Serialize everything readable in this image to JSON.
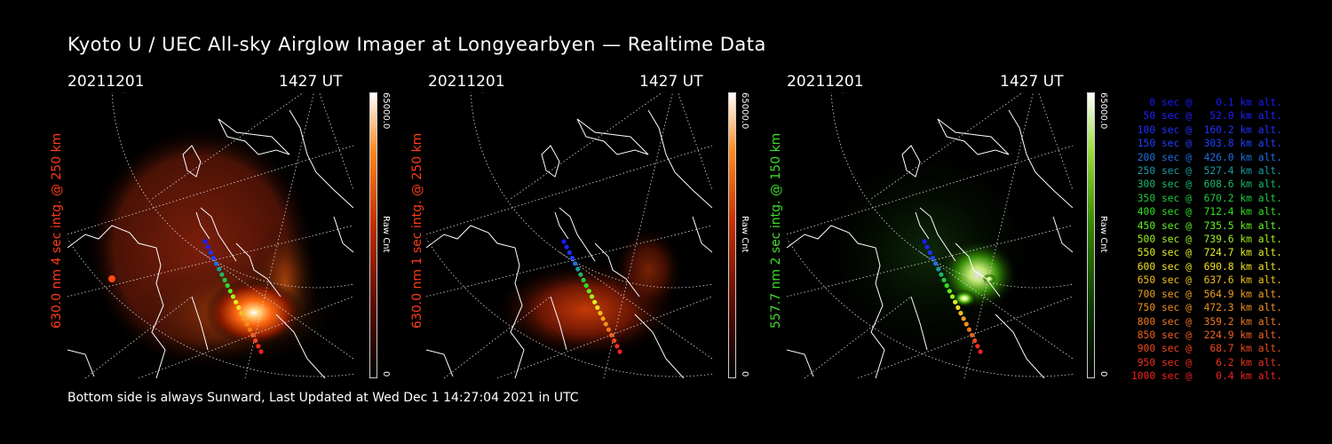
{
  "title": "Kyoto U / UEC All-sky Airglow Imager at Longyearbyen — Realtime Data",
  "footer": "Bottom side is always Sunward, Last Updated at Wed Dec  1 14:27:04 2021 in UTC",
  "panels": [
    {
      "date": "20211201",
      "time": "1427 UT",
      "label": "630.0 nm 4 sec intg. @ 250 km",
      "label_color": "#ff3b1a",
      "cbar_max": "65000.0",
      "cbar_unit": "Raw Cnt",
      "cbar_min": "0",
      "colormap": "red"
    },
    {
      "date": "20211201",
      "time": "1427 UT",
      "label": "630.0 nm 1 sec intg. @ 250 km",
      "label_color": "#ff3b1a",
      "cbar_max": "65000.0",
      "cbar_unit": "Raw Cnt",
      "cbar_min": "0",
      "colormap": "red"
    },
    {
      "date": "20211201",
      "time": "1427 UT",
      "label": "557.7 nm 2 sec intg. @ 150 km",
      "label_color": "#3fdc2a",
      "cbar_max": "65000.0",
      "cbar_unit": "Raw Cnt",
      "cbar_min": "0",
      "colormap": "green"
    }
  ],
  "legend": [
    {
      "text": "   0 sec @    0.1 km alt.",
      "color": "#1a1aff"
    },
    {
      "text": "  50 sec @   52.0 km alt.",
      "color": "#2020ff"
    },
    {
      "text": " 100 sec @  160.2 km alt.",
      "color": "#2030ff"
    },
    {
      "text": " 150 sec @  303.8 km alt.",
      "color": "#2040ff"
    },
    {
      "text": " 200 sec @  426.0 km alt.",
      "color": "#1f6fe0"
    },
    {
      "text": " 250 sec @  527.4 km alt.",
      "color": "#1a9aa0"
    },
    {
      "text": " 300 sec @  608.6 km alt.",
      "color": "#1ab86a"
    },
    {
      "text": " 350 sec @  670.2 km alt.",
      "color": "#20c840"
    },
    {
      "text": " 400 sec @  712.4 km alt.",
      "color": "#30e020"
    },
    {
      "text": " 450 sec @  735.5 km alt.",
      "color": "#60f020"
    },
    {
      "text": " 500 sec @  739.6 km alt.",
      "color": "#a0f020"
    },
    {
      "text": " 550 sec @  724.7 km alt.",
      "color": "#e0f020"
    },
    {
      "text": " 600 sec @  690.8 km alt.",
      "color": "#f0e020"
    },
    {
      "text": " 650 sec @  637.6 km alt.",
      "color": "#f0c020"
    },
    {
      "text": " 700 sec @  564.9 km alt.",
      "color": "#f0a020"
    },
    {
      "text": " 750 sec @  472.3 km alt.",
      "color": "#f09020"
    },
    {
      "text": " 800 sec @  359.2 km alt.",
      "color": "#f07820"
    },
    {
      "text": " 850 sec @  224.9 km alt.",
      "color": "#f06020"
    },
    {
      "text": " 900 sec @   68.7 km alt.",
      "color": "#f04820"
    },
    {
      "text": " 950 sec @    6.2 km alt.",
      "color": "#f03020"
    },
    {
      "text": "1000 sec @    0.4 km alt.",
      "color": "#f02020"
    }
  ],
  "track_colors": [
    "#1a1aff",
    "#2020ff",
    "#2030ff",
    "#2040ff",
    "#1f6fe0",
    "#1a9aa0",
    "#1ab86a",
    "#20c840",
    "#30e020",
    "#60f020",
    "#a0f020",
    "#e0f020",
    "#f0e020",
    "#f0c020",
    "#f0a020",
    "#f09020",
    "#f07820",
    "#f06020",
    "#f04820",
    "#f03020",
    "#f02020"
  ]
}
